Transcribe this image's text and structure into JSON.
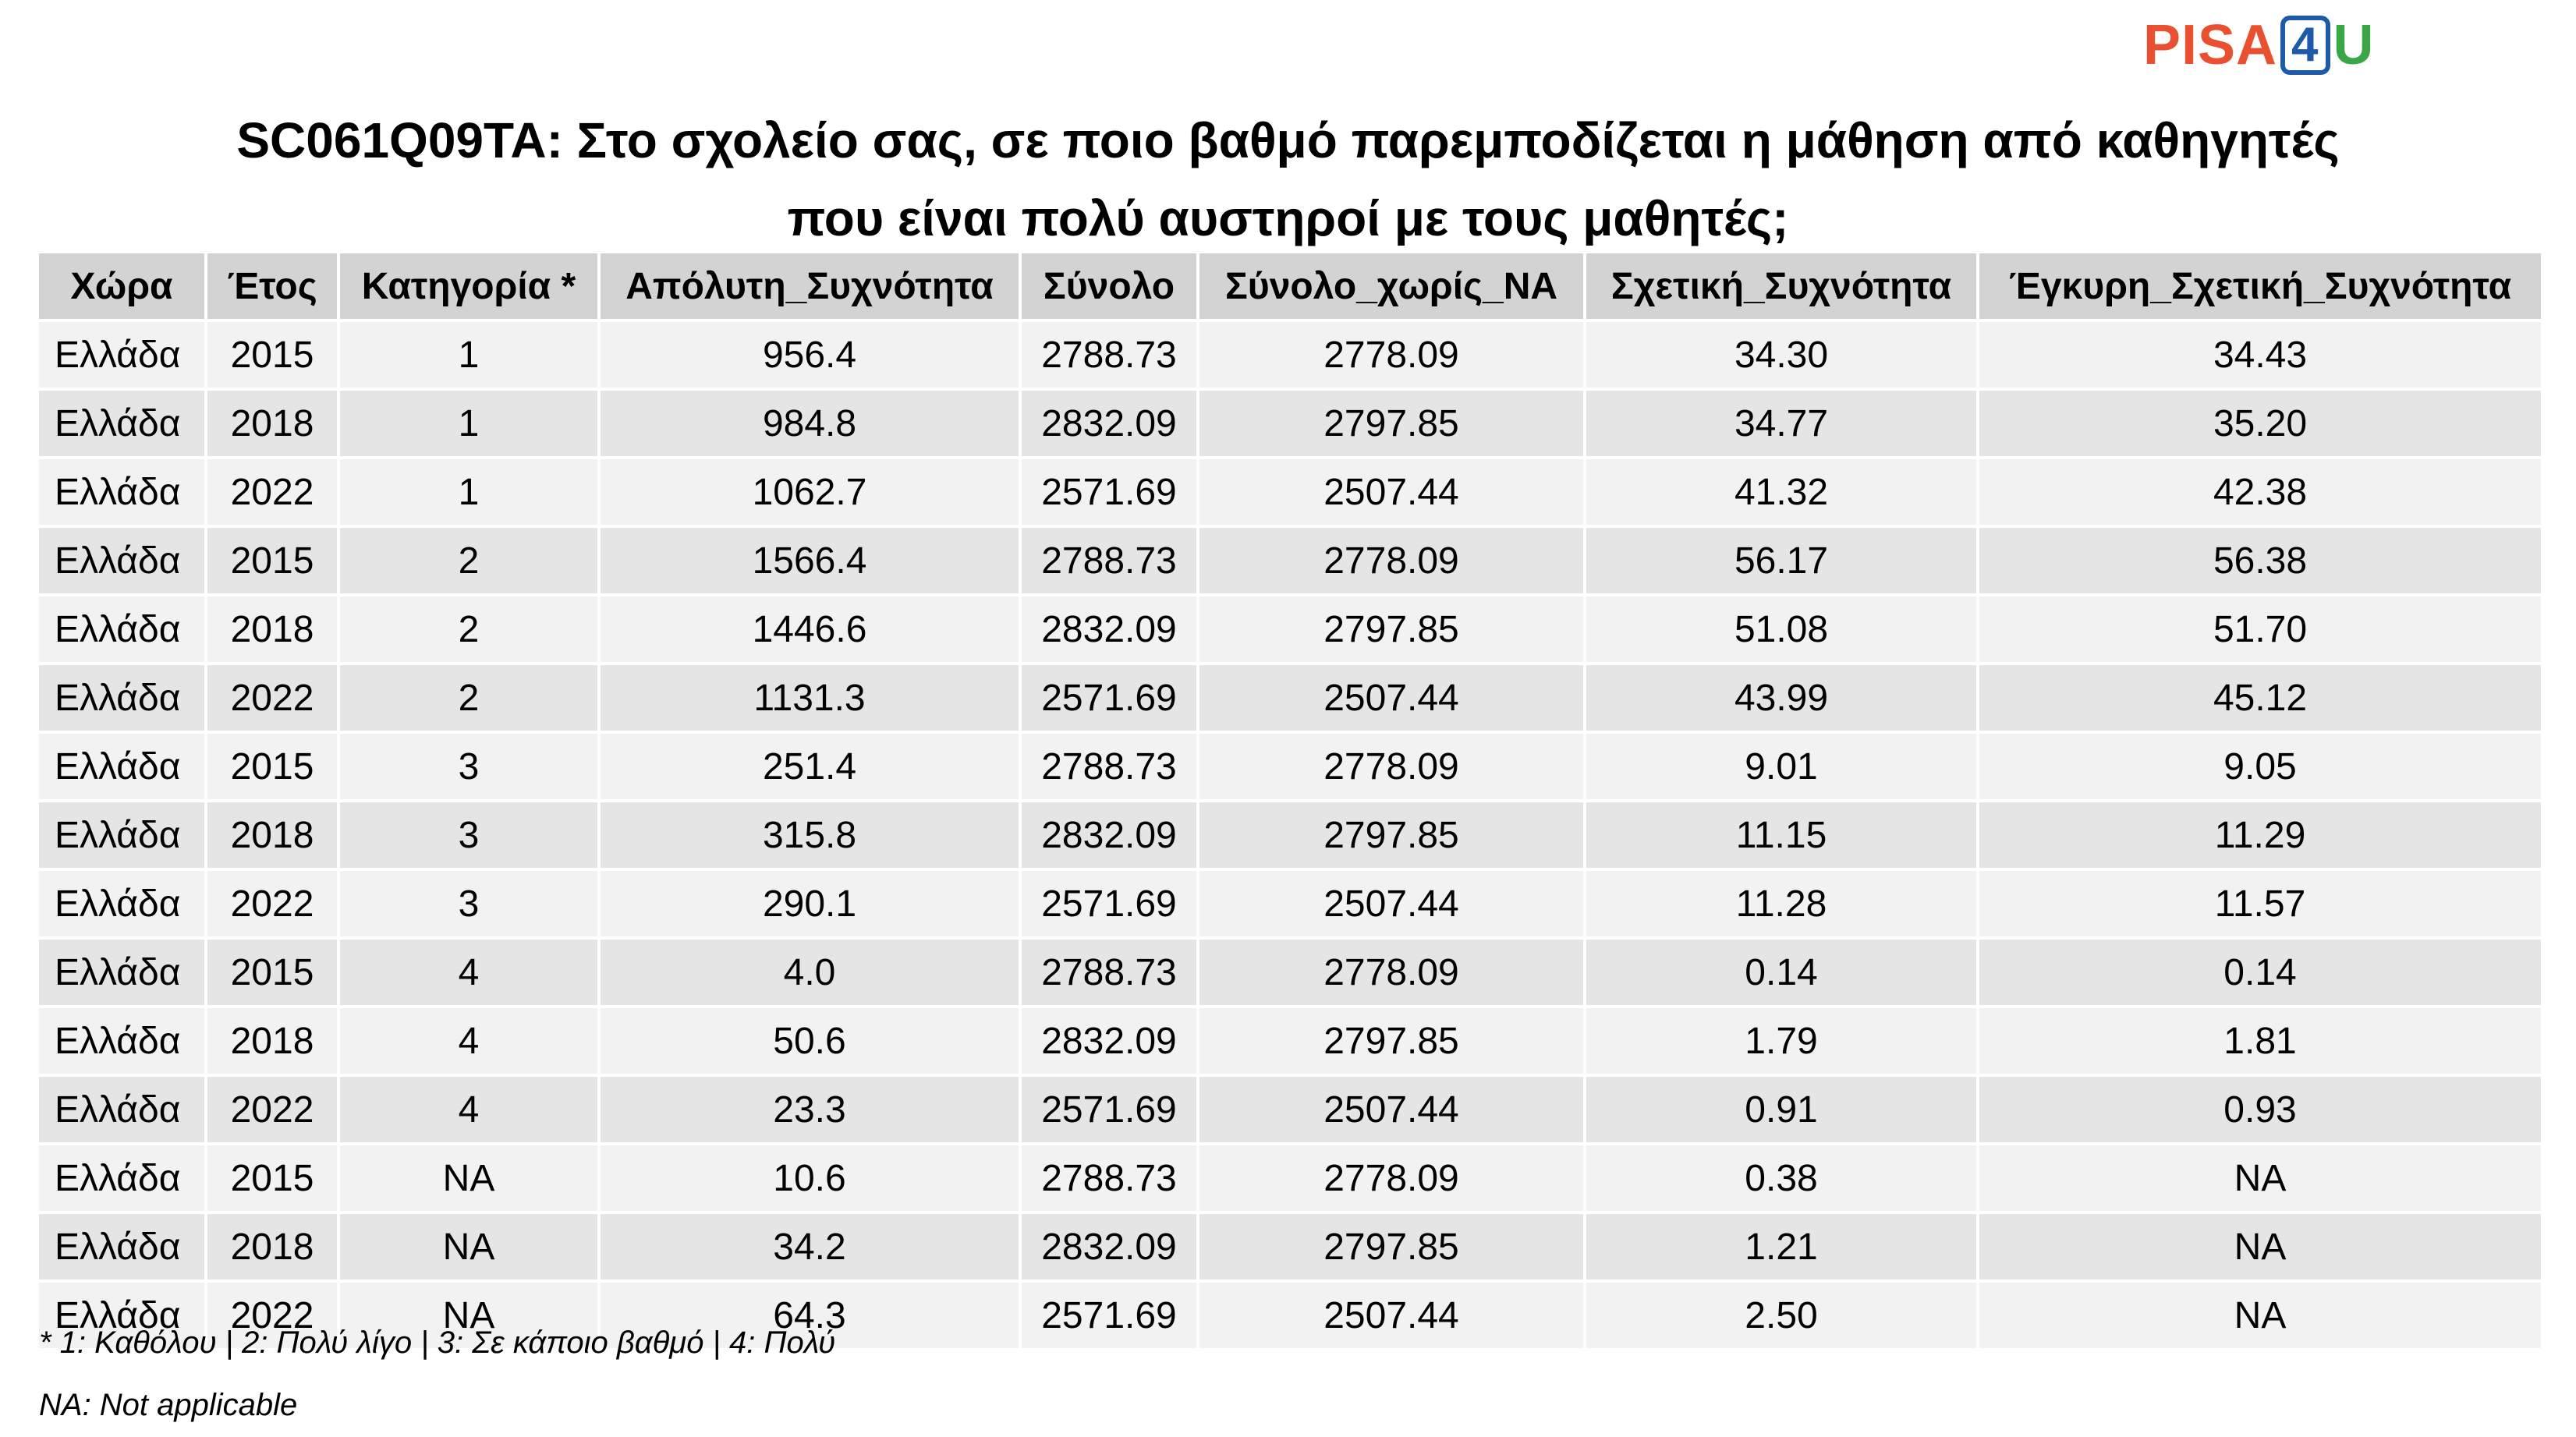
{
  "logo": {
    "part1": "PISA",
    "part2": "4",
    "part3": "U"
  },
  "title": {
    "line1": "SC061Q09TA: Στο σχολείο σας, σε ποιο βαθμό παρεμποδίζεται η μάθηση από καθηγητές",
    "line2": "που είναι πολύ αυστηροί με τους μαθητές;"
  },
  "table": {
    "headers": [
      "Χώρα",
      "Έτος",
      "Κατηγορία *",
      "Απόλυτη_Συχνότητα",
      "Σύνολο",
      "Σύνολο_χωρίς_NA",
      "Σχετική_Συχνότητα",
      "Έγκυρη_Σχετική_Συχνότητα"
    ],
    "rows": [
      [
        "Ελλάδα",
        "2015",
        "1",
        "956.4",
        "2788.73",
        "2778.09",
        "34.30",
        "34.43"
      ],
      [
        "Ελλάδα",
        "2018",
        "1",
        "984.8",
        "2832.09",
        "2797.85",
        "34.77",
        "35.20"
      ],
      [
        "Ελλάδα",
        "2022",
        "1",
        "1062.7",
        "2571.69",
        "2507.44",
        "41.32",
        "42.38"
      ],
      [
        "Ελλάδα",
        "2015",
        "2",
        "1566.4",
        "2788.73",
        "2778.09",
        "56.17",
        "56.38"
      ],
      [
        "Ελλάδα",
        "2018",
        "2",
        "1446.6",
        "2832.09",
        "2797.85",
        "51.08",
        "51.70"
      ],
      [
        "Ελλάδα",
        "2022",
        "2",
        "1131.3",
        "2571.69",
        "2507.44",
        "43.99",
        "45.12"
      ],
      [
        "Ελλάδα",
        "2015",
        "3",
        "251.4",
        "2788.73",
        "2778.09",
        "9.01",
        "9.05"
      ],
      [
        "Ελλάδα",
        "2018",
        "3",
        "315.8",
        "2832.09",
        "2797.85",
        "11.15",
        "11.29"
      ],
      [
        "Ελλάδα",
        "2022",
        "3",
        "290.1",
        "2571.69",
        "2507.44",
        "11.28",
        "11.57"
      ],
      [
        "Ελλάδα",
        "2015",
        "4",
        "4.0",
        "2788.73",
        "2778.09",
        "0.14",
        "0.14"
      ],
      [
        "Ελλάδα",
        "2018",
        "4",
        "50.6",
        "2832.09",
        "2797.85",
        "1.79",
        "1.81"
      ],
      [
        "Ελλάδα",
        "2022",
        "4",
        "23.3",
        "2571.69",
        "2507.44",
        "0.91",
        "0.93"
      ],
      [
        "Ελλάδα",
        "2015",
        "NA",
        "10.6",
        "2788.73",
        "2778.09",
        "0.38",
        "NA"
      ],
      [
        "Ελλάδα",
        "2018",
        "NA",
        "34.2",
        "2832.09",
        "2797.85",
        "1.21",
        "NA"
      ],
      [
        "Ελλάδα",
        "2022",
        "NA",
        "64.3",
        "2571.69",
        "2507.44",
        "2.50",
        "NA"
      ]
    ]
  },
  "footnotes": {
    "categories": "* 1: Καθόλου | 2: Πολύ λίγο | 3: Σε κάποιο βαθμό | 4: Πολύ",
    "na": "NA: Not applicable"
  },
  "colors": {
    "logo_pisa": "#e8502f",
    "logo_4": "#1e5aa8",
    "logo_u": "#3aa645",
    "header_bg": "#d3d3d3",
    "row_odd_bg": "#f2f2f2",
    "row_even_bg": "#e5e5e5"
  }
}
